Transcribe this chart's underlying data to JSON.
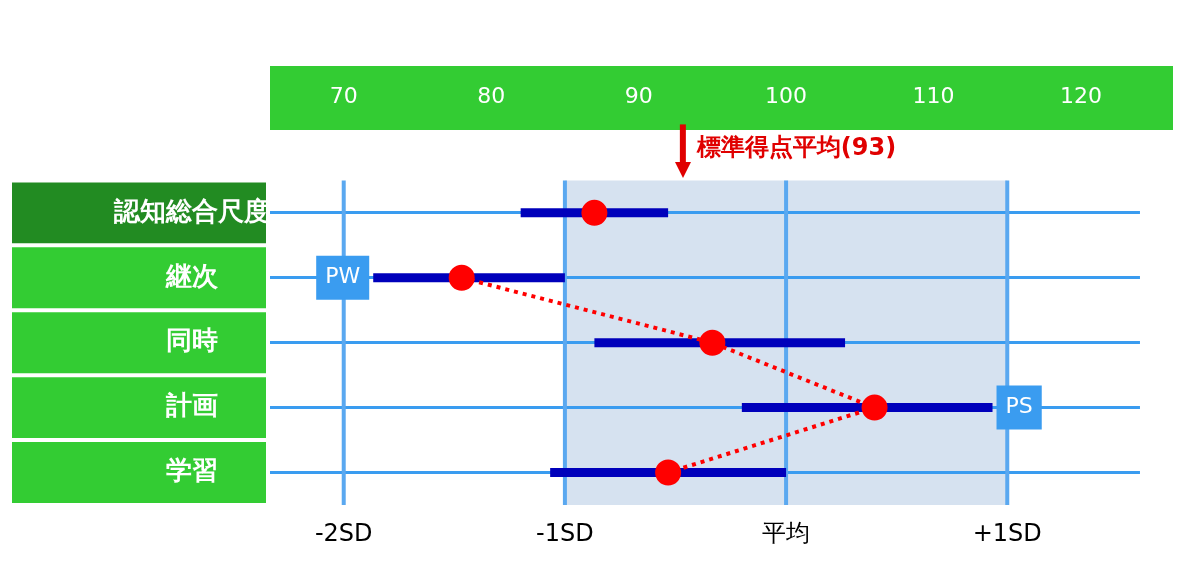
{
  "chart_data": {
    "type": "scatter",
    "orientation": "horizontal",
    "categories": [
      "認知総合尺度",
      "継次",
      "同時",
      "計画",
      "学習"
    ],
    "series": [
      {
        "type": "scatter",
        "color": "#ff0000",
        "values": [
          87,
          null,
          null,
          null,
          null
        ],
        "errors": [
          [
            82,
            92
          ],
          null,
          null,
          null,
          null
        ]
      },
      {
        "type": "line",
        "color": "#ff0000",
        "line_style": "dotted",
        "values": [
          null,
          78,
          95,
          106,
          92
        ],
        "errors": [
          null,
          [
            72,
            85
          ],
          [
            87,
            104
          ],
          [
            97,
            114
          ],
          [
            84,
            100
          ]
        ]
      }
    ],
    "xlim": [
      65,
      124
    ],
    "xticks": [
      70,
      80,
      90,
      100,
      110,
      120
    ],
    "ref_lines": [
      {
        "axis": "x",
        "value": 93,
        "label": "標準得点平均(93)",
        "color": "#e00000"
      },
      {
        "axis": "x",
        "value": 70,
        "label": "-2SD",
        "color": "#5aa8f0",
        "line_style": "solid"
      },
      {
        "axis": "x",
        "value": 85,
        "label": "-1SD",
        "color": "#5aa8f0",
        "line_style": "solid"
      },
      {
        "axis": "x",
        "value": 100,
        "label": "平均",
        "color": "#5aa8f0",
        "line_style": "solid"
      },
      {
        "axis": "x",
        "value": 115,
        "label": "+1SD",
        "color": "#5aa8f0",
        "line_style": "solid"
      }
    ],
    "bands": [
      {
        "axis": "x",
        "from": 85,
        "to": 115,
        "color": "#d6e2f0"
      }
    ],
    "annotations": [
      {
        "text": "PW",
        "x": 72,
        "y": "継次"
      },
      {
        "text": "PS",
        "x": 114,
        "y": "計画"
      }
    ],
    "grid": "y",
    "legend": false,
    "marker": "circle"
  }
}
